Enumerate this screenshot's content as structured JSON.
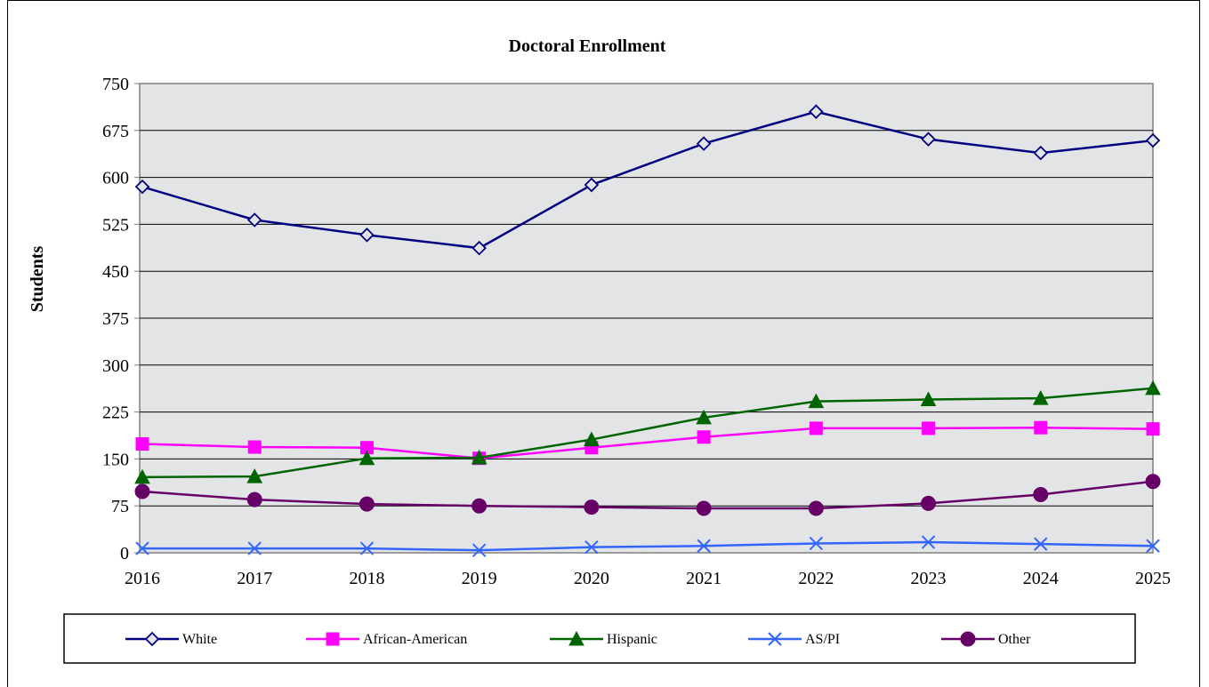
{
  "chart_data": {
    "type": "line",
    "title": "Doctoral Enrollment",
    "xlabel": "",
    "ylabel": "Students",
    "x": [
      "2016",
      "2017",
      "2018",
      "2019",
      "2020",
      "2021",
      "2022",
      "2023",
      "2024",
      "2025"
    ],
    "ylim": [
      0,
      750
    ],
    "yticks": [
      0,
      75,
      150,
      225,
      300,
      375,
      450,
      525,
      600,
      675,
      750
    ],
    "grid": true,
    "legend_position": "bottom",
    "series": [
      {
        "name": "White",
        "color": "#000080",
        "marker": "diamond",
        "values": [
          585,
          532,
          508,
          487,
          588,
          654,
          705,
          661,
          639,
          659
        ]
      },
      {
        "name": "African-American",
        "color": "#FF00FF",
        "marker": "square",
        "values": [
          174,
          169,
          168,
          151,
          168,
          185,
          199,
          199,
          200,
          198
        ]
      },
      {
        "name": "Hispanic",
        "color": "#006400",
        "marker": "triangle",
        "values": [
          121,
          122,
          151,
          152,
          181,
          216,
          242,
          245,
          247,
          263
        ]
      },
      {
        "name": "AS/PI",
        "color": "#3366FF",
        "marker": "x",
        "values": [
          7,
          7,
          7,
          4,
          9,
          11,
          15,
          17,
          14,
          11
        ]
      },
      {
        "name": "Other",
        "color": "#660066",
        "marker": "circle",
        "values": [
          98,
          85,
          78,
          75,
          73,
          71,
          71,
          79,
          93,
          114
        ]
      }
    ]
  }
}
